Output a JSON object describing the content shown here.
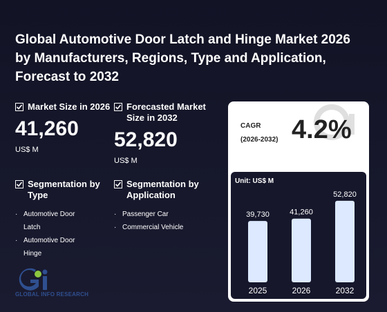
{
  "title": "Global Automotive Door Latch and Hinge Market 2026 by Manufacturers, Regions, Type and Application, Forecast to 2032",
  "market_size": {
    "label": "Market Size in 2026",
    "value": "41,260",
    "unit": "US$ M"
  },
  "forecast_size": {
    "label": "Forecasted Market Size in 2032",
    "value": "52,820",
    "unit": "US$ M"
  },
  "segmentation_type": {
    "title": "Segmentation by Type",
    "items": [
      "Automotive Door Latch",
      "Automotive Door Hinge"
    ]
  },
  "segmentation_application": {
    "title": "Segmentation by Application",
    "items": [
      "Passenger Car",
      "Commercial Vehicle"
    ]
  },
  "cagr": {
    "label": "CAGR",
    "period": "(2026-2032)",
    "value": "4.2%"
  },
  "logo": {
    "text": "GLOBAL INFO RESEARCH"
  },
  "chart_data": {
    "type": "bar",
    "unit_label": "Unit: US$ M",
    "categories": [
      "2025",
      "2026",
      "2032"
    ],
    "values": [
      39730,
      41260,
      52820
    ],
    "value_labels": [
      "39,730",
      "41,260",
      "52,820"
    ],
    "ylim": [
      0,
      60000
    ]
  },
  "colors": {
    "bar": "#dce9ff",
    "background": "#16172b",
    "accent": "#2f4f8f"
  }
}
